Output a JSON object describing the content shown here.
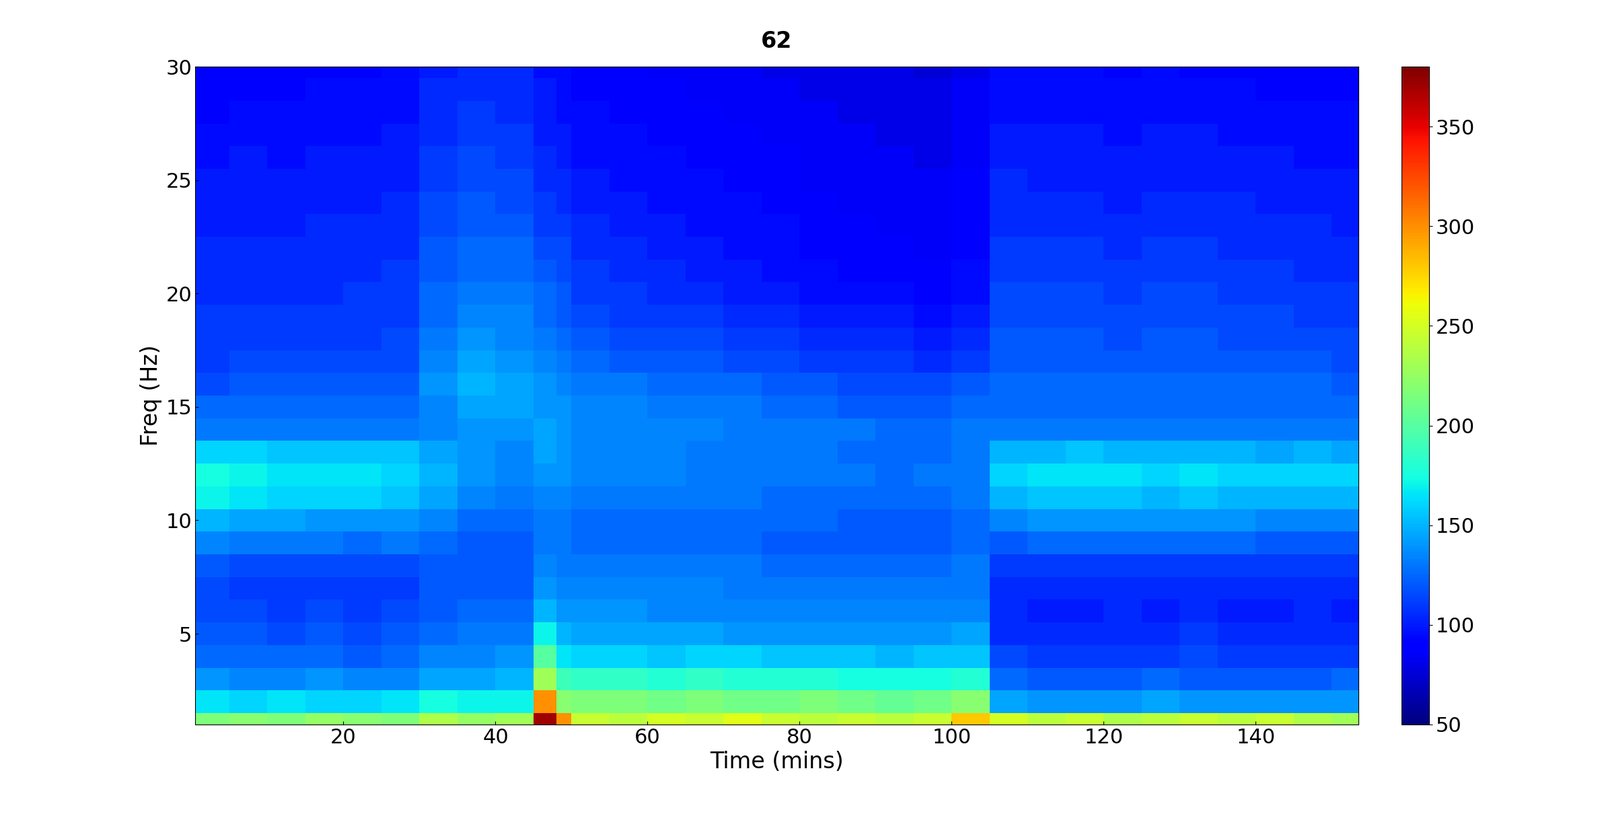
{
  "chart_data": {
    "type": "heatmap",
    "title": "62",
    "x_label": "Time (mins)",
    "y_label": "Freq (Hz)",
    "color": "jet",
    "x_edges": [
      0.5,
      5,
      10,
      15,
      20,
      25,
      30,
      35,
      40,
      45,
      48,
      50,
      55,
      60,
      65,
      70,
      75,
      80,
      85,
      90,
      95,
      100,
      105,
      110,
      115,
      120,
      125,
      130,
      135,
      140,
      145,
      150,
      153.5
    ],
    "y_edges": [
      0.5,
      1.5,
      2.5,
      3.5,
      4.5,
      5.5,
      6.5,
      7.5,
      8.5,
      9.5,
      10.5,
      11.5,
      12.5,
      13.5,
      14.5,
      15.5,
      16.5,
      17.5,
      18.5,
      19.5,
      20.5,
      21.5,
      22.5,
      23.5,
      24.5,
      25.5,
      26.5,
      27.5,
      28.5,
      29.5,
      30.5
    ],
    "xlim": [
      0.5,
      153.5
    ],
    "ylim": [
      1,
      30
    ],
    "xticks": [
      20,
      40,
      60,
      80,
      100,
      120,
      140
    ],
    "yticks": [
      5,
      10,
      15,
      20,
      25,
      30
    ],
    "cells": [
      [
        215,
        220,
        215,
        225,
        220,
        215,
        235,
        225,
        230,
        370,
        300,
        245,
        240,
        250,
        245,
        255,
        245,
        240,
        245,
        240,
        245,
        280,
        250,
        240,
        245,
        235,
        240,
        245,
        240,
        245,
        235,
        230
      ],
      [
        165,
        160,
        165,
        160,
        160,
        165,
        175,
        170,
        170,
        300,
        220,
        215,
        215,
        210,
        215,
        210,
        210,
        215,
        210,
        205,
        210,
        220,
        145,
        140,
        140,
        140,
        145,
        140,
        140,
        140,
        140,
        140
      ],
      [
        140,
        135,
        135,
        140,
        135,
        135,
        145,
        145,
        150,
        230,
        190,
        185,
        185,
        180,
        185,
        180,
        180,
        180,
        175,
        175,
        175,
        180,
        125,
        120,
        120,
        120,
        125,
        120,
        120,
        120,
        120,
        125
      ],
      [
        125,
        125,
        125,
        125,
        120,
        125,
        135,
        135,
        140,
        200,
        165,
        160,
        160,
        155,
        160,
        160,
        155,
        155,
        155,
        150,
        155,
        155,
        115,
        110,
        110,
        110,
        110,
        115,
        110,
        110,
        110,
        110
      ],
      [
        120,
        120,
        115,
        120,
        115,
        120,
        125,
        130,
        130,
        170,
        150,
        145,
        145,
        145,
        145,
        140,
        140,
        140,
        140,
        140,
        140,
        145,
        105,
        105,
        105,
        105,
        105,
        110,
        105,
        105,
        105,
        105
      ],
      [
        115,
        115,
        110,
        115,
        110,
        115,
        120,
        125,
        125,
        150,
        140,
        140,
        140,
        135,
        135,
        135,
        135,
        135,
        135,
        135,
        135,
        135,
        105,
        100,
        100,
        105,
        100,
        105,
        100,
        100,
        105,
        100
      ],
      [
        115,
        110,
        110,
        110,
        110,
        110,
        120,
        120,
        120,
        140,
        135,
        135,
        135,
        135,
        135,
        130,
        130,
        130,
        130,
        130,
        130,
        130,
        105,
        105,
        105,
        105,
        105,
        105,
        105,
        105,
        105,
        105
      ],
      [
        120,
        115,
        115,
        115,
        115,
        115,
        120,
        120,
        120,
        135,
        130,
        130,
        130,
        130,
        130,
        130,
        125,
        125,
        125,
        125,
        125,
        130,
        110,
        110,
        110,
        110,
        110,
        110,
        110,
        110,
        110,
        110
      ],
      [
        135,
        130,
        130,
        130,
        125,
        130,
        125,
        120,
        120,
        130,
        130,
        125,
        125,
        125,
        125,
        125,
        120,
        120,
        120,
        120,
        120,
        125,
        120,
        125,
        125,
        125,
        125,
        125,
        125,
        120,
        120,
        120
      ],
      [
        150,
        145,
        145,
        140,
        140,
        140,
        135,
        125,
        125,
        130,
        130,
        125,
        125,
        125,
        125,
        125,
        125,
        125,
        120,
        120,
        120,
        125,
        135,
        140,
        140,
        140,
        140,
        140,
        140,
        135,
        135,
        135
      ],
      [
        170,
        165,
        160,
        160,
        160,
        155,
        145,
        135,
        130,
        135,
        135,
        130,
        130,
        130,
        130,
        130,
        125,
        125,
        125,
        125,
        125,
        130,
        150,
        155,
        155,
        155,
        150,
        155,
        150,
        150,
        150,
        150
      ],
      [
        175,
        170,
        165,
        165,
        165,
        160,
        150,
        140,
        135,
        140,
        140,
        135,
        135,
        135,
        130,
        130,
        130,
        130,
        130,
        125,
        130,
        130,
        160,
        165,
        165,
        165,
        160,
        165,
        160,
        160,
        160,
        160
      ],
      [
        160,
        160,
        155,
        155,
        155,
        155,
        145,
        140,
        135,
        145,
        140,
        135,
        135,
        135,
        130,
        130,
        130,
        130,
        125,
        125,
        125,
        130,
        150,
        150,
        155,
        150,
        150,
        150,
        150,
        145,
        150,
        145
      ],
      [
        130,
        130,
        130,
        130,
        130,
        130,
        135,
        140,
        140,
        145,
        140,
        135,
        135,
        135,
        135,
        130,
        130,
        130,
        130,
        125,
        125,
        130,
        130,
        130,
        130,
        130,
        130,
        130,
        130,
        130,
        130,
        130
      ],
      [
        125,
        125,
        125,
        125,
        125,
        125,
        135,
        145,
        145,
        140,
        140,
        135,
        135,
        130,
        130,
        130,
        125,
        125,
        120,
        120,
        120,
        125,
        125,
        125,
        125,
        125,
        125,
        125,
        125,
        125,
        125,
        125
      ],
      [
        115,
        120,
        120,
        120,
        120,
        120,
        140,
        150,
        145,
        140,
        135,
        130,
        130,
        125,
        125,
        125,
        120,
        120,
        115,
        115,
        115,
        120,
        125,
        125,
        125,
        125,
        125,
        125,
        125,
        125,
        125,
        120
      ],
      [
        110,
        115,
        115,
        115,
        115,
        115,
        135,
        145,
        140,
        135,
        130,
        125,
        120,
        120,
        120,
        115,
        115,
        110,
        110,
        110,
        105,
        110,
        120,
        120,
        120,
        120,
        120,
        120,
        120,
        120,
        120,
        115
      ],
      [
        110,
        110,
        110,
        110,
        110,
        115,
        130,
        140,
        135,
        130,
        125,
        120,
        115,
        115,
        115,
        110,
        110,
        105,
        105,
        105,
        100,
        105,
        120,
        120,
        120,
        115,
        120,
        120,
        115,
        115,
        115,
        115
      ],
      [
        110,
        110,
        110,
        110,
        110,
        110,
        125,
        135,
        135,
        125,
        120,
        115,
        110,
        110,
        110,
        105,
        105,
        100,
        100,
        100,
        95,
        100,
        115,
        115,
        115,
        115,
        115,
        115,
        115,
        115,
        110,
        110
      ],
      [
        105,
        105,
        105,
        105,
        110,
        110,
        125,
        130,
        130,
        125,
        120,
        110,
        110,
        105,
        105,
        100,
        100,
        95,
        95,
        95,
        90,
        95,
        115,
        115,
        115,
        110,
        115,
        115,
        110,
        110,
        110,
        110
      ],
      [
        105,
        105,
        105,
        105,
        105,
        110,
        120,
        125,
        125,
        120,
        115,
        110,
        105,
        105,
        100,
        100,
        95,
        95,
        90,
        90,
        90,
        95,
        110,
        110,
        110,
        110,
        110,
        110,
        110,
        110,
        105,
        105
      ],
      [
        105,
        105,
        105,
        105,
        105,
        105,
        120,
        125,
        125,
        115,
        115,
        105,
        105,
        100,
        100,
        95,
        95,
        90,
        90,
        90,
        85,
        90,
        110,
        110,
        110,
        105,
        110,
        110,
        105,
        105,
        105,
        105
      ],
      [
        100,
        100,
        100,
        105,
        105,
        105,
        115,
        120,
        120,
        110,
        110,
        105,
        100,
        100,
        95,
        95,
        95,
        90,
        90,
        85,
        85,
        90,
        105,
        105,
        105,
        105,
        105,
        105,
        105,
        105,
        105,
        100
      ],
      [
        100,
        100,
        100,
        100,
        100,
        105,
        115,
        120,
        115,
        110,
        105,
        100,
        100,
        95,
        95,
        95,
        90,
        90,
        85,
        85,
        85,
        90,
        105,
        105,
        105,
        100,
        105,
        105,
        105,
        100,
        100,
        100
      ],
      [
        100,
        100,
        100,
        100,
        100,
        100,
        110,
        115,
        115,
        105,
        105,
        100,
        95,
        95,
        95,
        90,
        90,
        85,
        85,
        85,
        85,
        90,
        105,
        100,
        100,
        100,
        100,
        100,
        100,
        100,
        100,
        100
      ],
      [
        95,
        100,
        95,
        100,
        100,
        100,
        110,
        115,
        110,
        105,
        100,
        95,
        95,
        95,
        90,
        90,
        90,
        85,
        85,
        85,
        80,
        85,
        100,
        100,
        100,
        100,
        100,
        100,
        100,
        100,
        95,
        95
      ],
      [
        95,
        95,
        95,
        95,
        95,
        100,
        105,
        110,
        110,
        100,
        100,
        95,
        95,
        90,
        90,
        90,
        85,
        85,
        85,
        80,
        80,
        85,
        100,
        100,
        100,
        95,
        100,
        100,
        95,
        95,
        95,
        95
      ],
      [
        90,
        95,
        95,
        95,
        95,
        95,
        105,
        110,
        105,
        100,
        95,
        95,
        90,
        90,
        90,
        85,
        85,
        85,
        80,
        80,
        80,
        85,
        95,
        95,
        95,
        95,
        95,
        95,
        95,
        95,
        95,
        95
      ],
      [
        90,
        90,
        90,
        95,
        95,
        95,
        105,
        105,
        105,
        100,
        95,
        90,
        90,
        90,
        85,
        85,
        85,
        80,
        80,
        80,
        80,
        85,
        95,
        95,
        95,
        95,
        95,
        95,
        95,
        90,
        90,
        90
      ],
      [
        90,
        90,
        90,
        90,
        90,
        95,
        100,
        105,
        105,
        95,
        95,
        90,
        90,
        85,
        85,
        85,
        80,
        80,
        80,
        80,
        75,
        80,
        95,
        95,
        95,
        90,
        95,
        90,
        90,
        90,
        90,
        90
      ]
    ],
    "colorbar": {
      "range": [
        50,
        380
      ],
      "ticks": [
        50,
        100,
        150,
        200,
        250,
        300,
        350
      ]
    }
  }
}
